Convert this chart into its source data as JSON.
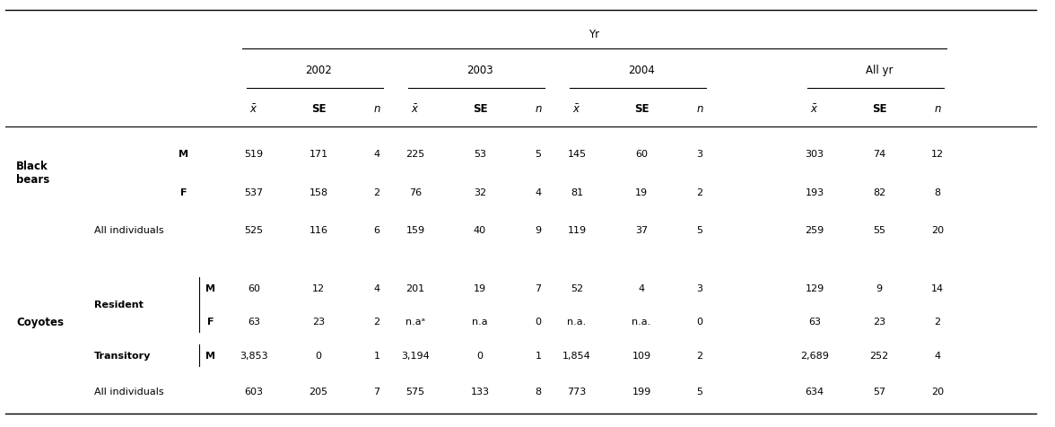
{
  "figsize": [
    11.76,
    4.77
  ],
  "dpi": 100,
  "background": "#ffffff",
  "header_yr": "Yr",
  "header_years": [
    "2002",
    "2003",
    "2004",
    "All yr"
  ],
  "col_headers": [
    "x_bar",
    "SE",
    "n"
  ],
  "bb_rows": {
    "M": [
      "519",
      "171",
      "4",
      "225",
      "53",
      "5",
      "145",
      "60",
      "3",
      "303",
      "74",
      "12"
    ],
    "F": [
      "537",
      "158",
      "2",
      "76",
      "32",
      "4",
      "81",
      "19",
      "2",
      "193",
      "82",
      "8"
    ],
    "All": [
      "525",
      "116",
      "6",
      "159",
      "40",
      "9",
      "119",
      "37",
      "5",
      "259",
      "55",
      "20"
    ]
  },
  "coy_res_M": [
    "60",
    "12",
    "4",
    "201",
    "19",
    "7",
    "52",
    "4",
    "3",
    "129",
    "9",
    "14"
  ],
  "coy_res_F": [
    "63",
    "23",
    "2",
    "n.aᵃ",
    "n.a",
    "0",
    "n.a.",
    "n.a.",
    "0",
    "63",
    "23",
    "2"
  ],
  "coy_trans_M": [
    "3,853",
    "0",
    "1",
    "3,194",
    "0",
    "1",
    "1,854",
    "109",
    "2",
    "2,689",
    "252",
    "4"
  ],
  "coy_all": [
    "603",
    "205",
    "7",
    "575",
    "133",
    "8",
    "773",
    "199",
    "5",
    "634",
    "57",
    "20"
  ]
}
